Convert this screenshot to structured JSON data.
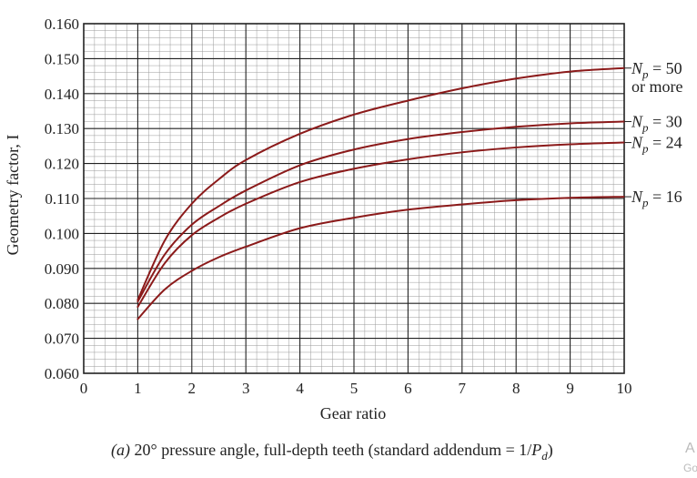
{
  "chart_data": {
    "type": "line",
    "xlabel": "Gear ratio",
    "ylabel": "Geometry factor, I",
    "xlim": [
      0,
      10
    ],
    "ylim": [
      0.06,
      0.16
    ],
    "x_ticks": [
      "0",
      "1",
      "2",
      "3",
      "4",
      "5",
      "6",
      "7",
      "8",
      "9",
      "10"
    ],
    "y_ticks": [
      "0.060",
      "0.070",
      "0.080",
      "0.090",
      "0.100",
      "0.110",
      "0.120",
      "0.130",
      "0.140",
      "0.150",
      "0.160"
    ],
    "grid": true,
    "caption": {
      "prefix": "(a)",
      "text": " 20° pressure angle, full-depth teeth (standard addendum = 1/",
      "var": "P",
      "sub": "d",
      "suffix": ")"
    },
    "series": [
      {
        "label_var": "N",
        "label_sub": "p",
        "label_text": " = 50",
        "label_extra": "or more",
        "color": "#8b1a1a",
        "x": [
          1.0,
          1.5,
          2.0,
          2.5,
          3.0,
          4.0,
          5.0,
          6.0,
          7.0,
          8.0,
          9.0,
          10.0
        ],
        "y": [
          0.081,
          0.098,
          0.1085,
          0.1155,
          0.121,
          0.1285,
          0.134,
          0.138,
          0.1415,
          0.1443,
          0.1463,
          0.1473
        ]
      },
      {
        "label_var": "N",
        "label_sub": "p",
        "label_text": " = 30",
        "color": "#8b1a1a",
        "x": [
          1.0,
          1.5,
          2.0,
          2.5,
          3.0,
          4.0,
          5.0,
          6.0,
          7.0,
          8.0,
          9.0,
          10.0
        ],
        "y": [
          0.0805,
          0.094,
          0.1025,
          0.1078,
          0.1123,
          0.1195,
          0.124,
          0.127,
          0.129,
          0.1305,
          0.1315,
          0.132
        ]
      },
      {
        "label_var": "N",
        "label_sub": "p",
        "label_text": " = 24",
        "color": "#8b1a1a",
        "x": [
          1.0,
          1.5,
          2.0,
          2.5,
          3.0,
          4.0,
          5.0,
          6.0,
          7.0,
          8.0,
          9.0,
          10.0
        ],
        "y": [
          0.079,
          0.0915,
          0.0995,
          0.1045,
          0.1085,
          0.1147,
          0.1185,
          0.1212,
          0.1232,
          0.1246,
          0.1255,
          0.126
        ]
      },
      {
        "label_var": "N",
        "label_sub": "p",
        "label_text": " = 16",
        "color": "#8b1a1a",
        "x": [
          1.0,
          1.5,
          2.0,
          2.5,
          3.0,
          4.0,
          5.0,
          6.0,
          7.0,
          8.0,
          9.0,
          10.0
        ],
        "y": [
          0.0755,
          0.084,
          0.0893,
          0.0932,
          0.0962,
          0.1015,
          0.1045,
          0.1068,
          0.1083,
          0.1095,
          0.1102,
          0.1105
        ]
      }
    ]
  },
  "watermark": {
    "line1": "A",
    "line2": "Go"
  }
}
